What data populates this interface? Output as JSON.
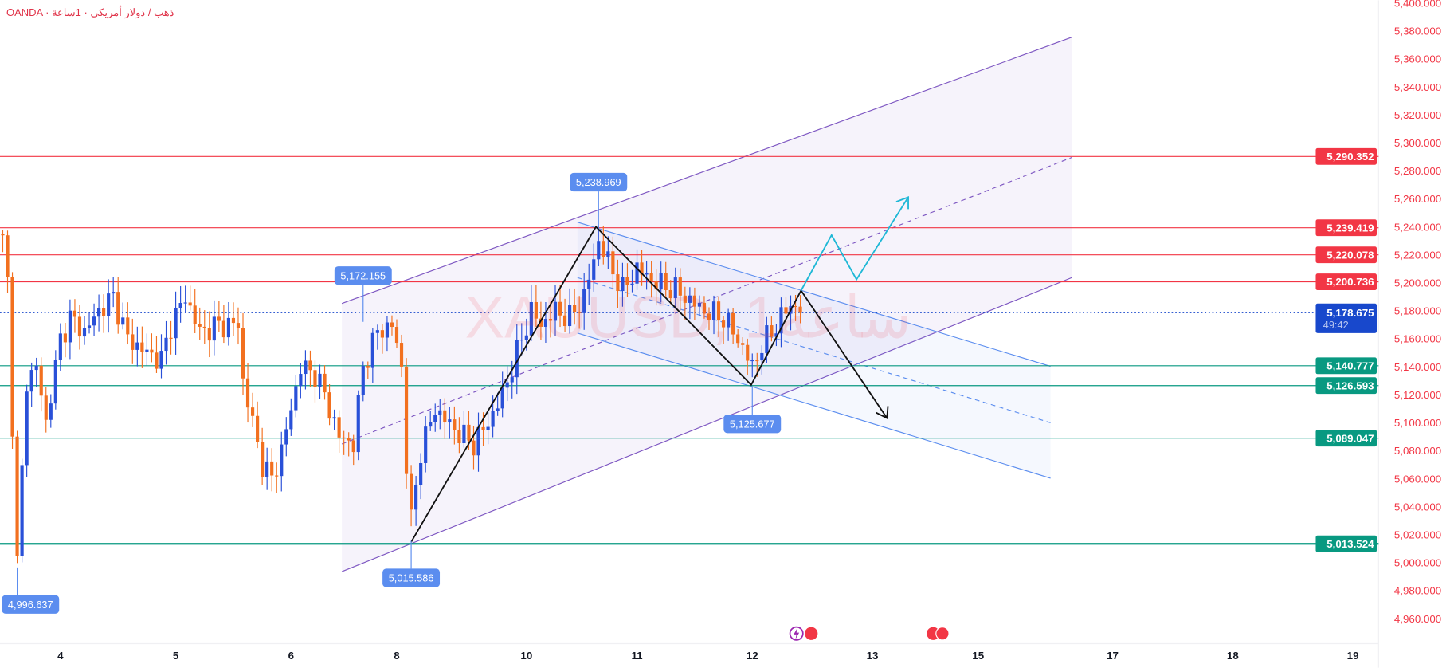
{
  "header": {
    "title": "OANDA · ذهب / دولار أمريكي · 1ساعة"
  },
  "watermark": "XAUUSD, 1ساعة",
  "colors": {
    "up": "#2950d8",
    "down": "#f2701f",
    "resistance": "#f23645",
    "support": "#089981",
    "current": "#1848cc",
    "channel": "#7e57c2",
    "desc_channel": "#5b8def",
    "path": "#111111",
    "alt_path": "#1fb8d6"
  },
  "chart_data": {
    "type": "candlestick",
    "symbol": "XAUUSD",
    "timeframe": "1H",
    "ylim": [
      4950,
      5400
    ],
    "y_ticks": [
      5400,
      5380,
      5360,
      5340,
      5320,
      5300,
      5280,
      5260,
      5240,
      5220,
      5200,
      5180,
      5160,
      5140,
      5120,
      5100,
      5080,
      5060,
      5040,
      5020,
      5000,
      4980,
      4960
    ],
    "y_tick_labels": [
      "5,400.000",
      "5,380.000",
      "5,360.000",
      "5,340.000",
      "5,320.000",
      "5,300.000",
      "5,280.000",
      "5,260.000",
      "5,240.000",
      "5,220.000",
      "5,200.000",
      "5,180.000",
      "5,160.000",
      "5,140.000",
      "5,120.000",
      "5,100.000",
      "5,080.000",
      "5,060.000",
      "5,040.000",
      "5,020.000",
      "5,000.000",
      "4,980.000",
      "4,960.000"
    ],
    "x_ticks": [
      {
        "label": "4",
        "bar": 12
      },
      {
        "label": "5",
        "bar": 36
      },
      {
        "label": "6",
        "bar": 60
      },
      {
        "label": "8",
        "bar": 82
      },
      {
        "label": "10",
        "bar": 109
      },
      {
        "label": "11",
        "bar": 132
      },
      {
        "label": "12",
        "bar": 156
      },
      {
        "label": "13",
        "bar": 181
      },
      {
        "label": "15",
        "bar": 203
      },
      {
        "label": "17",
        "bar": 231
      },
      {
        "label": "18",
        "bar": 256
      },
      {
        "label": "19",
        "bar": 281
      }
    ],
    "close_waypoints": [
      [
        0,
        5230
      ],
      [
        1,
        5200
      ],
      [
        3,
        5000
      ],
      [
        5,
        5130
      ],
      [
        7,
        5140
      ],
      [
        9,
        5100
      ],
      [
        12,
        5160
      ],
      [
        14,
        5175
      ],
      [
        17,
        5165
      ],
      [
        20,
        5180
      ],
      [
        23,
        5190
      ],
      [
        26,
        5160
      ],
      [
        30,
        5150
      ],
      [
        33,
        5145
      ],
      [
        35,
        5170
      ],
      [
        38,
        5190
      ],
      [
        41,
        5165
      ],
      [
        45,
        5170
      ],
      [
        49,
        5170
      ],
      [
        50,
        5130
      ],
      [
        52,
        5100
      ],
      [
        54,
        5070
      ],
      [
        56,
        5060
      ],
      [
        58,
        5080
      ],
      [
        60,
        5110
      ],
      [
        62,
        5140
      ],
      [
        65,
        5135
      ],
      [
        67,
        5120
      ],
      [
        70,
        5090
      ],
      [
        73,
        5085
      ],
      [
        75,
        5140
      ],
      [
        78,
        5165
      ],
      [
        81,
        5170
      ],
      [
        83,
        5140
      ],
      [
        84,
        5070
      ],
      [
        85,
        5030
      ],
      [
        87,
        5080
      ],
      [
        90,
        5110
      ],
      [
        94,
        5095
      ],
      [
        98,
        5085
      ],
      [
        101,
        5100
      ],
      [
        104,
        5120
      ],
      [
        107,
        5150
      ],
      [
        110,
        5180
      ],
      [
        112,
        5170
      ],
      [
        115,
        5180
      ],
      [
        118,
        5175
      ],
      [
        121,
        5190
      ],
      [
        124,
        5230
      ],
      [
        126,
        5215
      ],
      [
        129,
        5195
      ],
      [
        132,
        5210
      ],
      [
        136,
        5200
      ],
      [
        140,
        5195
      ],
      [
        146,
        5180
      ],
      [
        150,
        5175
      ],
      [
        153,
        5160
      ],
      [
        156,
        5140
      ],
      [
        158,
        5155
      ],
      [
        161,
        5170
      ],
      [
        164,
        5185
      ],
      [
        166,
        5179
      ]
    ],
    "horizontal_levels": {
      "resistance": [
        {
          "value": 5290.352,
          "label": "5,290.352"
        },
        {
          "value": 5239.419,
          "label": "5,239.419"
        },
        {
          "value": 5220.078,
          "label": "5,220.078"
        },
        {
          "value": 5200.736,
          "label": "5,200.736"
        }
      ],
      "support": [
        {
          "value": 5140.777,
          "label": "5,140.777"
        },
        {
          "value": 5126.593,
          "label": "5,126.593"
        },
        {
          "value": 5089.047,
          "label": "5,089.047"
        },
        {
          "value": 5013.524,
          "label": "5,013.524"
        }
      ]
    },
    "current_price": {
      "value": 5178.675,
      "label": "5,178.675",
      "countdown": "49:42"
    },
    "pivot_labels": [
      {
        "label": "5,238.969",
        "value": 5238.969,
        "bar": 124,
        "pos": "above"
      },
      {
        "label": "5,172.155",
        "value": 5172.155,
        "bar": 75,
        "pos": "above"
      },
      {
        "label": "5,015.586",
        "value": 5015.586,
        "bar": 85,
        "pos": "below"
      },
      {
        "label": "5,125.677",
        "value": 5125.677,
        "bar": 156,
        "pos": "below"
      },
      {
        "label": "4,996.637",
        "value": 4996.637,
        "bar": 3,
        "pos": "below"
      }
    ]
  }
}
